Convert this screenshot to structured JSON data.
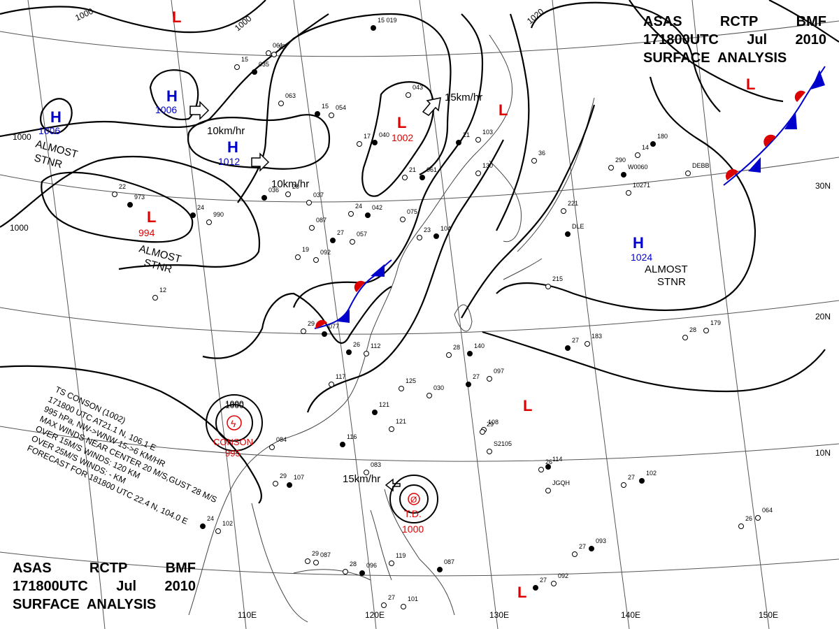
{
  "header": {
    "line1": [
      "ASAS",
      "RCTP",
      "BMF"
    ],
    "line2": [
      "171800UTC",
      "Jul",
      "2010"
    ],
    "line3": "SURFACE  ANALYSIS"
  },
  "footer": {
    "line1": [
      "ASAS",
      "RCTP",
      "BMF"
    ],
    "line2": [
      "171800UTC",
      "Jul",
      "2010"
    ],
    "line3": "SURFACE  ANALYSIS"
  },
  "grid": {
    "lon_labels": [
      "110E",
      "120E",
      "130E",
      "140E",
      "150E"
    ],
    "lat_labels": [
      "30N",
      "20N",
      "10N"
    ]
  },
  "isobars": {
    "labels": [
      "1000",
      "1000",
      "1000",
      "1000",
      "1020",
      "1000"
    ]
  },
  "pressure_centers": [
    {
      "kind": "H",
      "value": "1006",
      "color": "#0000cc"
    },
    {
      "kind": "H",
      "value": "1006",
      "color": "#0000cc"
    },
    {
      "kind": "H",
      "value": "1012",
      "color": "#0000cc"
    },
    {
      "kind": "H",
      "value": "1024",
      "color": "#0000cc"
    },
    {
      "kind": "L",
      "value": "994",
      "color": "#dd0000"
    },
    {
      "kind": "L",
      "value": "1002",
      "color": "#dd0000"
    },
    {
      "kind": "L",
      "value": "",
      "color": "#dd0000"
    },
    {
      "kind": "L",
      "value": "",
      "color": "#dd0000"
    },
    {
      "kind": "L",
      "value": "",
      "color": "#dd0000"
    },
    {
      "kind": "L",
      "value": "",
      "color": "#dd0000"
    },
    {
      "kind": "L",
      "value": "",
      "color": "#dd0000"
    }
  ],
  "motion_labels": [
    "10km/hr",
    "10km/hr",
    "15km/hr",
    "15km/hr"
  ],
  "stationary_labels": [
    {
      "l1": "ALMOST",
      "l2": "STNR"
    },
    {
      "l1": "ALMOST",
      "l2": "STNR"
    },
    {
      "l1": "ALMOST",
      "l2": "STNR"
    }
  ],
  "storms": {
    "conson_name": "CONSON",
    "conson_pressure": "995",
    "conson_isobar": "1000",
    "td_name": "T.D.",
    "td_pressure": "1000"
  },
  "warning_text": [
    "TS  CONSON  (1002)",
    "171800 UTC  AT21.1 N, 106.1 E",
    "995 hPa, NW->WNW  15->6 KM/HR",
    "MAX WINDS NEAR CENTER 20 M/S,GUST 28 M/S",
    "OVER 15M/S WINDS: 120 KM",
    "OVER 25M/S WINDS: - KM",
    "FORECAST FOR 181800 UTC 22.4 N, 104.0 E"
  ],
  "station_labels": [
    "15 019",
    "061",
    "15",
    "035",
    "063",
    "054",
    "15",
    "15",
    "043",
    "040",
    "17",
    "103",
    "21",
    "130",
    "36",
    "180",
    "14",
    "290",
    "W0060",
    "DEBB",
    "10271",
    "973",
    "22",
    "990",
    "24",
    "037",
    "20",
    "036",
    "087",
    "057",
    "27",
    "092",
    "19",
    "042",
    "24",
    "075",
    "104",
    "23",
    "221",
    "DLE",
    "215",
    "183",
    "27",
    "179",
    "28",
    "140",
    "28",
    "097",
    "27",
    "117",
    "125",
    "121",
    "121",
    "084",
    "116",
    "108",
    "29",
    "114",
    "26",
    "JGQH",
    "102",
    "27",
    "083",
    "107",
    "29",
    "102",
    "24",
    "087",
    "29",
    "096",
    "28",
    "119",
    "087",
    "101",
    "27",
    "093",
    "27",
    "092",
    "27",
    "064",
    "26",
    "077",
    "29",
    "112",
    "26",
    "030",
    "12",
    "061",
    "21",
    "S2105"
  ],
  "colors": {
    "isobar": "#000000",
    "grid": "#555555",
    "high": "#0000cc",
    "low": "#dd0000",
    "cold_front": "#0000cc",
    "warm_front": "#dd0000"
  }
}
